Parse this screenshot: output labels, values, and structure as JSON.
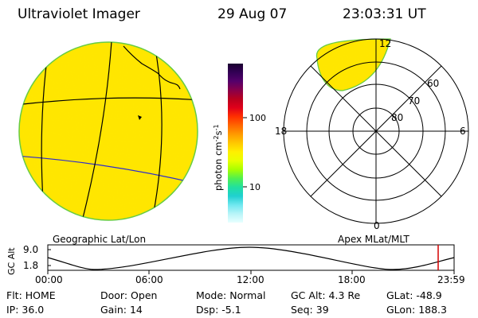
{
  "header": {
    "instrument": "Ultraviolet Imager",
    "date": "29 Aug 07",
    "time": "23:03:31 UT"
  },
  "colorbar": {
    "unit_label": "photon cm",
    "unit_exp1": "-2",
    "unit_mid": "s",
    "unit_exp2": "-1",
    "ticks": [
      {
        "value": 100,
        "label": "100"
      },
      {
        "value": 10,
        "label": "10"
      }
    ],
    "colors_top_to_bottom": [
      "#1a0030",
      "#330055",
      "#55006b",
      "#88004a",
      "#b8001e",
      "#e0001a",
      "#ff3000",
      "#ff6600",
      "#ff9a00",
      "#ffc800",
      "#fff000",
      "#e8ff00",
      "#a8ff00",
      "#50f050",
      "#20e0a0",
      "#20d0d0",
      "#70e8f0",
      "#b8f4f8",
      "#e8ffff"
    ]
  },
  "polar_plot": {
    "title": "Apex MLat/MLT",
    "lat_labels": [
      "60",
      "70",
      "80"
    ],
    "mlt_labels": {
      "top": "12",
      "bottom": "0",
      "left": "18",
      "right": "6"
    }
  },
  "geo_plot": {
    "title": "Geographic Lat/Lon"
  },
  "altitude_strip": {
    "axis_label": "GC Alt",
    "y_ticks": [
      "9.0",
      "1.8"
    ],
    "x_ticks": [
      "00:00",
      "06:00",
      "12:00",
      "18:00",
      "23:59"
    ],
    "current_time_marker": "23:03"
  },
  "status": {
    "flt_label": "Flt:",
    "flt_value": "HOME",
    "door_label": "Door:",
    "door_value": "Open",
    "mode_label": "Mode:",
    "mode_value": "Normal",
    "gcalt_label": "GC Alt:",
    "gcalt_value": "4.3 Re",
    "glat_label": "GLat:",
    "glat_value": "-48.9",
    "ip_label": "IP:",
    "ip_value": "36.0",
    "gain_label": "Gain:",
    "gain_value": "14",
    "dsp_label": "Dsp:",
    "dsp_value": "-5.1",
    "seq_label": "Seq:",
    "seq_value": "39",
    "glon_label": "GLon:",
    "glon_value": "188.3"
  }
}
